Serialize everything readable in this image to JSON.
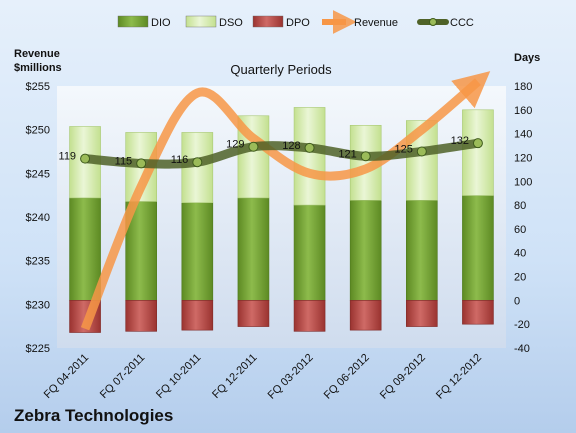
{
  "chart_data": {
    "type": "bar",
    "subtitle": "Quarterly Periods",
    "company": "Zebra Technologies",
    "left_axis": {
      "title_lines": [
        "Revenue",
        "$millions"
      ],
      "min": 225,
      "max": 255,
      "step": 5,
      "prefix": "$"
    },
    "right_axis": {
      "title": "Days",
      "min": -40,
      "max": 180,
      "step": 20
    },
    "categories": [
      "FQ 04-2011",
      "FQ 07-2011",
      "FQ 10-2011",
      "FQ 12-2011",
      "FQ 03-2012",
      "FQ 06-2012",
      "FQ 09-2012",
      "FQ 12-2012"
    ],
    "series": [
      {
        "name": "DIO",
        "values": [
          86,
          83,
          82,
          86,
          80,
          84,
          84,
          88
        ],
        "color": "#7aa63c"
      },
      {
        "name": "DSO",
        "values": [
          60,
          58,
          59,
          69,
          82,
          63,
          67,
          72
        ],
        "color": "#d6ecb4"
      },
      {
        "name": "DPO",
        "values": [
          -27,
          -26,
          -25,
          -22,
          -26,
          -25,
          -22,
          -20
        ],
        "color": "#c0504d"
      },
      {
        "name": "Revenue",
        "values": [
          227.2,
          243.5,
          254.2,
          249.0,
          245.0,
          245.5,
          250.0,
          255.5
        ],
        "color": "#f79646"
      },
      {
        "name": "CCC",
        "values": [
          119,
          115,
          116,
          129,
          128,
          121,
          125,
          132
        ],
        "color": "#4f6228"
      }
    ],
    "legend_position": "top",
    "grid": false
  }
}
